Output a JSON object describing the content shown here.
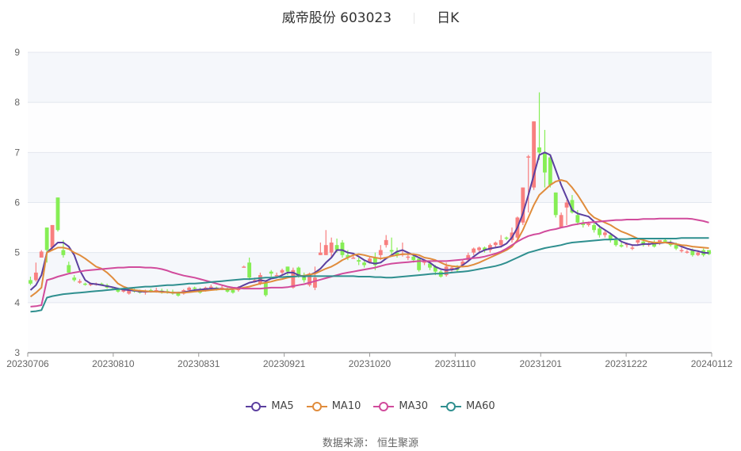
{
  "header": {
    "title": "威帝股份 603023",
    "period": "日K"
  },
  "footer": {
    "source": "数据来源： 恒生聚源"
  },
  "colors": {
    "up": "#f87f7f",
    "down": "#86ee55",
    "band": "#f5f7fb",
    "grid": "#e3e7ef",
    "axis": "#999999",
    "MA5": "#5b3f9f",
    "MA10": "#e08c3c",
    "MA30": "#d14b9c",
    "MA60": "#2f8f8f"
  },
  "chart_data": {
    "type": "candlestick",
    "title": "威帝股份 603023 日K",
    "xlabel": "",
    "ylabel": "",
    "ylim": [
      3,
      9
    ],
    "yticks": [
      3,
      4,
      5,
      6,
      7,
      8,
      9
    ],
    "xticks": [
      "20230706",
      "20230810",
      "20230831",
      "20230921",
      "20231020",
      "20231110",
      "20231201",
      "20231222",
      "20240112"
    ],
    "grid": true,
    "legend": [
      "MA5",
      "MA10",
      "MA30",
      "MA60"
    ],
    "legend_position": "bottom",
    "candles_ocl h_note": "each candle: [open, close, low, high]",
    "candles": [
      [
        4.45,
        4.38,
        4.35,
        4.52
      ],
      [
        4.45,
        4.6,
        4.42,
        4.8
      ],
      [
        4.9,
        5.02,
        4.9,
        5.05
      ],
      [
        5.5,
        5.05,
        4.8,
        5.5
      ],
      [
        5.1,
        5.55,
        5.05,
        5.55
      ],
      [
        6.1,
        5.45,
        5.42,
        6.1
      ],
      [
        5.05,
        4.95,
        4.9,
        5.25
      ],
      [
        4.75,
        4.6,
        4.6,
        4.82
      ],
      [
        4.5,
        4.45,
        4.42,
        4.55
      ],
      [
        4.4,
        4.43,
        4.38,
        4.47
      ],
      [
        4.38,
        4.36,
        4.34,
        4.4
      ],
      [
        4.35,
        4.38,
        4.33,
        4.4
      ],
      [
        4.36,
        4.38,
        4.34,
        4.4
      ],
      [
        4.38,
        4.36,
        4.34,
        4.4
      ],
      [
        4.35,
        4.3,
        4.28,
        4.38
      ],
      [
        4.28,
        4.27,
        4.25,
        4.3
      ],
      [
        4.28,
        4.22,
        4.2,
        4.3
      ],
      [
        4.22,
        4.26,
        4.2,
        4.28
      ],
      [
        4.18,
        4.3,
        4.16,
        4.3
      ],
      [
        4.26,
        4.22,
        4.2,
        4.28
      ],
      [
        4.24,
        4.2,
        4.18,
        4.26
      ],
      [
        4.2,
        4.24,
        4.16,
        4.26
      ],
      [
        4.25,
        4.22,
        4.2,
        4.28
      ],
      [
        4.22,
        4.25,
        4.2,
        4.3
      ],
      [
        4.24,
        4.2,
        4.18,
        4.28
      ],
      [
        4.23,
        4.2,
        4.18,
        4.27
      ],
      [
        4.22,
        4.18,
        4.16,
        4.26
      ],
      [
        4.2,
        4.14,
        4.12,
        4.22
      ],
      [
        4.18,
        4.25,
        4.16,
        4.27
      ],
      [
        4.25,
        4.3,
        4.22,
        4.32
      ],
      [
        4.3,
        4.28,
        4.25,
        4.32
      ],
      [
        4.25,
        4.2,
        4.18,
        4.3
      ],
      [
        4.25,
        4.3,
        4.22,
        4.32
      ],
      [
        4.3,
        4.32,
        4.28,
        4.36
      ],
      [
        4.3,
        4.26,
        4.24,
        4.32
      ],
      [
        4.28,
        4.3,
        4.25,
        4.34
      ],
      [
        4.28,
        4.22,
        4.2,
        4.3
      ],
      [
        4.25,
        4.2,
        4.18,
        4.28
      ],
      [
        4.25,
        4.3,
        4.22,
        4.33
      ],
      [
        4.72,
        4.72,
        4.72,
        4.74
      ],
      [
        4.8,
        4.5,
        4.45,
        4.9
      ],
      [
        4.45,
        4.45,
        4.4,
        4.5
      ],
      [
        4.38,
        4.55,
        4.35,
        4.6
      ],
      [
        4.4,
        4.15,
        4.12,
        4.45
      ],
      [
        4.62,
        4.58,
        4.52,
        4.65
      ],
      [
        4.55,
        4.55,
        4.52,
        4.6
      ],
      [
        4.6,
        4.65,
        4.55,
        4.68
      ],
      [
        4.72,
        4.62,
        4.55,
        4.72
      ],
      [
        4.3,
        4.65,
        4.28,
        4.7
      ],
      [
        4.7,
        4.55,
        4.5,
        4.72
      ],
      [
        4.55,
        4.45,
        4.4,
        4.6
      ],
      [
        4.35,
        4.58,
        4.32,
        4.6
      ],
      [
        4.3,
        4.5,
        4.25,
        4.72
      ],
      [
        4.95,
        5.0,
        4.95,
        5.2
      ],
      [
        4.95,
        5.15,
        4.95,
        5.45
      ],
      [
        5.0,
        5.2,
        4.9,
        5.3
      ],
      [
        5.15,
        5.05,
        5.0,
        5.28
      ],
      [
        5.2,
        4.95,
        4.9,
        5.25
      ],
      [
        4.95,
        4.9,
        4.85,
        5.05
      ],
      [
        4.9,
        4.9,
        4.88,
        4.95
      ],
      [
        4.85,
        4.82,
        4.75,
        4.9
      ],
      [
        4.8,
        4.75,
        4.7,
        4.85
      ],
      [
        4.8,
        4.88,
        4.78,
        4.92
      ],
      [
        4.9,
        4.75,
        4.65,
        5.0
      ],
      [
        4.95,
        5.05,
        4.85,
        5.15
      ],
      [
        5.15,
        5.25,
        5.1,
        5.35
      ],
      [
        5.05,
        5.02,
        4.95,
        5.3
      ],
      [
        5.0,
        4.95,
        4.9,
        5.1
      ],
      [
        4.95,
        4.98,
        4.92,
        5.2
      ],
      [
        4.9,
        4.92,
        4.85,
        4.95
      ],
      [
        4.92,
        4.85,
        4.8,
        4.95
      ],
      [
        4.88,
        4.65,
        4.62,
        4.88
      ],
      [
        4.8,
        4.82,
        4.75,
        4.85
      ],
      [
        4.78,
        4.7,
        4.65,
        4.82
      ],
      [
        4.72,
        4.62,
        4.55,
        4.75
      ],
      [
        4.62,
        4.52,
        4.5,
        4.65
      ],
      [
        4.55,
        4.72,
        4.52,
        4.8
      ],
      [
        4.68,
        4.7,
        4.62,
        4.72
      ],
      [
        4.7,
        4.65,
        4.6,
        4.75
      ],
      [
        4.75,
        4.82,
        4.72,
        4.85
      ],
      [
        4.85,
        4.95,
        4.82,
        5.0
      ],
      [
        5.0,
        5.08,
        4.95,
        5.1
      ],
      [
        5.05,
        5.1,
        5.0,
        5.12
      ],
      [
        5.1,
        5.05,
        5.0,
        5.12
      ],
      [
        5.05,
        5.15,
        5.0,
        5.18
      ],
      [
        5.15,
        5.2,
        5.1,
        5.22
      ],
      [
        5.15,
        5.25,
        5.1,
        5.35
      ],
      [
        5.3,
        5.28,
        5.25,
        5.32
      ],
      [
        5.25,
        5.4,
        5.2,
        5.5
      ],
      [
        5.3,
        5.7,
        5.25,
        5.72
      ],
      [
        5.6,
        6.3,
        5.55,
        6.3
      ],
      [
        6.9,
        6.92,
        5.8,
        6.95
      ],
      [
        6.3,
        7.62,
        6.25,
        7.62
      ],
      [
        7.1,
        7.0,
        6.85,
        8.2
      ],
      [
        7.0,
        6.6,
        6.3,
        7.45
      ],
      [
        6.9,
        6.35,
        6.3,
        6.95
      ],
      [
        6.2,
        5.75,
        5.7,
        6.2
      ],
      [
        5.5,
        5.75,
        5.5,
        5.8
      ],
      [
        5.9,
        6.0,
        5.55,
        6.05
      ],
      [
        6.05,
        5.8,
        5.78,
        6.15
      ],
      [
        5.75,
        5.6,
        5.55,
        5.85
      ],
      [
        5.6,
        5.55,
        5.5,
        5.65
      ],
      [
        5.55,
        5.58,
        5.52,
        5.62
      ],
      [
        5.55,
        5.45,
        5.4,
        5.62
      ],
      [
        5.48,
        5.35,
        5.3,
        5.55
      ],
      [
        5.35,
        5.4,
        5.3,
        5.45
      ],
      [
        5.35,
        5.25,
        5.2,
        5.4
      ],
      [
        5.25,
        5.15,
        5.12,
        5.3
      ],
      [
        5.15,
        5.12,
        5.1,
        5.2
      ],
      [
        5.15,
        5.18,
        5.1,
        5.2
      ],
      [
        5.1,
        5.1,
        5.05,
        5.15
      ],
      [
        5.2,
        5.25,
        5.15,
        5.28
      ],
      [
        5.22,
        5.15,
        5.12,
        5.25
      ],
      [
        5.15,
        5.18,
        5.12,
        5.2
      ],
      [
        5.18,
        5.12,
        5.1,
        5.25
      ],
      [
        5.2,
        5.25,
        5.15,
        5.25
      ],
      [
        5.25,
        5.22,
        5.2,
        5.28
      ],
      [
        5.2,
        5.15,
        5.12,
        5.25
      ],
      [
        5.15,
        5.08,
        5.05,
        5.2
      ],
      [
        5.05,
        5.05,
        5.0,
        5.1
      ],
      [
        5.0,
        5.02,
        4.98,
        5.05
      ],
      [
        5.05,
        4.95,
        4.92,
        5.08
      ],
      [
        4.95,
        5.0,
        4.93,
        5.05
      ],
      [
        5.05,
        4.95,
        4.92,
        5.08
      ],
      [
        5.05,
        4.97,
        4.95,
        5.05
      ]
    ],
    "series": [
      {
        "name": "MA5",
        "values": [
          4.25,
          4.35,
          4.55,
          5.0,
          5.1,
          5.2,
          5.2,
          5.12,
          4.95,
          4.65,
          4.45,
          4.38,
          4.37,
          4.35,
          4.33,
          4.31,
          4.28,
          4.26,
          4.25,
          4.24,
          4.22,
          4.22,
          4.22,
          4.22,
          4.22,
          4.21,
          4.2,
          4.2,
          4.21,
          4.23,
          4.25,
          4.26,
          4.27,
          4.28,
          4.28,
          4.27,
          4.27,
          4.27,
          4.3,
          4.35,
          4.4,
          4.42,
          4.45,
          4.43,
          4.48,
          4.5,
          4.55,
          4.6,
          4.6,
          4.55,
          4.52,
          4.55,
          4.6,
          4.68,
          4.8,
          4.9,
          5.05,
          5.05,
          5.0,
          4.98,
          4.92,
          4.85,
          4.8,
          4.78,
          4.8,
          4.88,
          4.95,
          5.02,
          5.05,
          5.0,
          4.95,
          4.9,
          4.85,
          4.8,
          4.72,
          4.67,
          4.65,
          4.66,
          4.68,
          4.75,
          4.83,
          4.92,
          5.0,
          5.05,
          5.08,
          5.1,
          5.12,
          5.18,
          5.3,
          5.5,
          5.78,
          6.15,
          6.55,
          6.95,
          7.0,
          6.95,
          6.65,
          6.35,
          6.1,
          5.85,
          5.78,
          5.75,
          5.72,
          5.62,
          5.52,
          5.45,
          5.38,
          5.3,
          5.22,
          5.18,
          5.15,
          5.15,
          5.17,
          5.17,
          5.18,
          5.19,
          5.2,
          5.2,
          5.17,
          5.12,
          5.08,
          5.05,
          5.03,
          5.0,
          4.99
        ]
      },
      {
        "name": "MA10",
        "values": [
          4.12,
          4.2,
          4.3,
          5.0,
          5.05,
          5.1,
          5.1,
          5.07,
          5.0,
          4.95,
          4.88,
          4.8,
          4.72,
          4.68,
          4.6,
          4.5,
          4.38,
          4.32,
          4.28,
          4.25,
          4.24,
          4.23,
          4.22,
          4.22,
          4.21,
          4.21,
          4.2,
          4.2,
          4.2,
          4.21,
          4.22,
          4.23,
          4.24,
          4.25,
          4.26,
          4.27,
          4.27,
          4.27,
          4.28,
          4.3,
          4.32,
          4.35,
          4.38,
          4.4,
          4.42,
          4.45,
          4.47,
          4.5,
          4.52,
          4.53,
          4.54,
          4.56,
          4.58,
          4.63,
          4.68,
          4.72,
          4.78,
          4.85,
          4.9,
          4.95,
          4.97,
          4.95,
          4.92,
          4.9,
          4.88,
          4.9,
          4.93,
          4.95,
          4.97,
          4.97,
          4.97,
          4.95,
          4.9,
          4.88,
          4.85,
          4.8,
          4.75,
          4.73,
          4.72,
          4.72,
          4.73,
          4.76,
          4.8,
          4.85,
          4.9,
          4.95,
          5.0,
          5.05,
          5.12,
          5.25,
          5.45,
          5.7,
          5.95,
          6.15,
          6.25,
          6.35,
          6.42,
          6.45,
          6.42,
          6.3,
          6.15,
          5.98,
          5.8,
          5.7,
          5.65,
          5.6,
          5.55,
          5.48,
          5.42,
          5.38,
          5.33,
          5.28,
          5.25,
          5.22,
          5.2,
          5.2,
          5.2,
          5.18,
          5.17,
          5.15,
          5.14,
          5.12,
          5.11,
          5.1,
          5.09
        ]
      },
      {
        "name": "MA30",
        "values": [
          3.92,
          3.93,
          3.95,
          4.45,
          4.48,
          4.52,
          4.55,
          4.58,
          4.6,
          4.62,
          4.64,
          4.65,
          4.66,
          4.67,
          4.68,
          4.69,
          4.7,
          4.7,
          4.71,
          4.71,
          4.71,
          4.7,
          4.7,
          4.69,
          4.67,
          4.64,
          4.6,
          4.57,
          4.54,
          4.52,
          4.5,
          4.47,
          4.44,
          4.41,
          4.38,
          4.35,
          4.32,
          4.3,
          4.29,
          4.28,
          4.28,
          4.28,
          4.28,
          4.29,
          4.3,
          4.3,
          4.3,
          4.31,
          4.33,
          4.35,
          4.37,
          4.4,
          4.43,
          4.46,
          4.49,
          4.52,
          4.55,
          4.58,
          4.6,
          4.62,
          4.64,
          4.66,
          4.68,
          4.7,
          4.73,
          4.76,
          4.78,
          4.79,
          4.8,
          4.81,
          4.82,
          4.83,
          4.83,
          4.83,
          4.83,
          4.83,
          4.83,
          4.84,
          4.85,
          4.86,
          4.88,
          4.89,
          4.9,
          4.92,
          4.95,
          4.98,
          5.02,
          5.08,
          5.15,
          5.22,
          5.28,
          5.33,
          5.36,
          5.38,
          5.42,
          5.45,
          5.47,
          5.5,
          5.52,
          5.55,
          5.57,
          5.59,
          5.6,
          5.61,
          5.62,
          5.63,
          5.64,
          5.65,
          5.65,
          5.66,
          5.66,
          5.66,
          5.67,
          5.67,
          5.67,
          5.68,
          5.68,
          5.68,
          5.68,
          5.68,
          5.68,
          5.67,
          5.65,
          5.63,
          5.6
        ]
      },
      {
        "name": "MA60",
        "values": [
          3.82,
          3.83,
          3.85,
          4.1,
          4.13,
          4.15,
          4.17,
          4.18,
          4.19,
          4.2,
          4.21,
          4.22,
          4.23,
          4.24,
          4.25,
          4.26,
          4.27,
          4.28,
          4.29,
          4.3,
          4.31,
          4.32,
          4.32,
          4.33,
          4.34,
          4.35,
          4.35,
          4.36,
          4.37,
          4.38,
          4.38,
          4.39,
          4.4,
          4.41,
          4.42,
          4.43,
          4.44,
          4.45,
          4.46,
          4.47,
          4.47,
          4.48,
          4.49,
          4.5,
          4.5,
          4.51,
          4.51,
          4.52,
          4.52,
          4.53,
          4.53,
          4.53,
          4.53,
          4.53,
          4.53,
          4.53,
          4.53,
          4.53,
          4.53,
          4.53,
          4.52,
          4.52,
          4.52,
          4.51,
          4.51,
          4.5,
          4.5,
          4.51,
          4.52,
          4.53,
          4.54,
          4.55,
          4.56,
          4.57,
          4.58,
          4.58,
          4.59,
          4.6,
          4.61,
          4.62,
          4.63,
          4.65,
          4.67,
          4.69,
          4.71,
          4.73,
          4.76,
          4.8,
          4.85,
          4.9,
          4.95,
          5.0,
          5.03,
          5.06,
          5.09,
          5.11,
          5.13,
          5.15,
          5.18,
          5.2,
          5.21,
          5.22,
          5.23,
          5.24,
          5.25,
          5.26,
          5.26,
          5.27,
          5.27,
          5.27,
          5.28,
          5.28,
          5.28,
          5.28,
          5.28,
          5.28,
          5.28,
          5.28,
          5.28,
          5.29,
          5.29,
          5.29,
          5.29,
          5.29,
          5.29
        ]
      }
    ]
  },
  "legend": {
    "items": [
      {
        "label": "MA5"
      },
      {
        "label": "MA10"
      },
      {
        "label": "MA30"
      },
      {
        "label": "MA60"
      }
    ]
  }
}
